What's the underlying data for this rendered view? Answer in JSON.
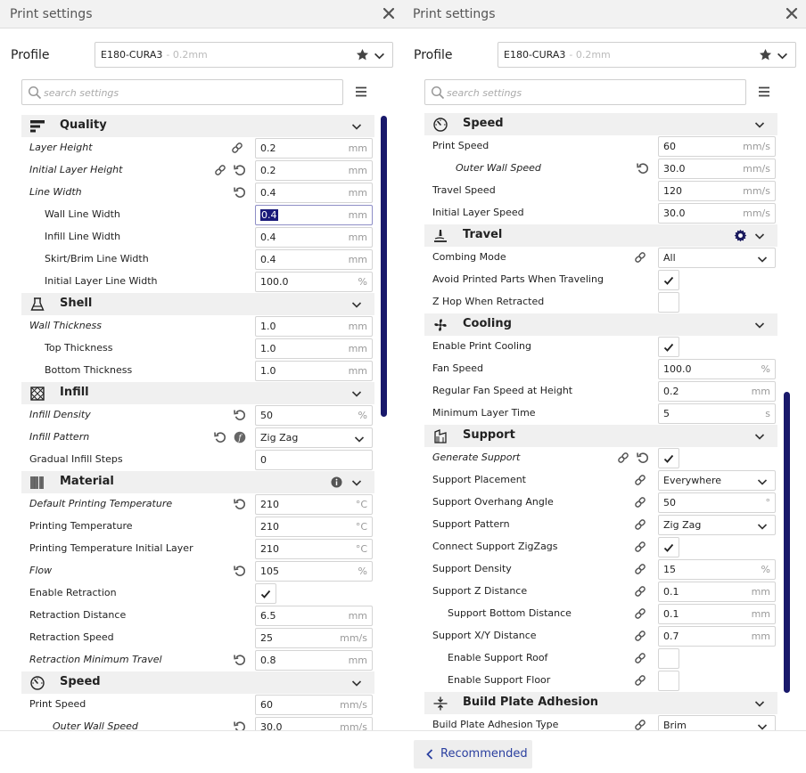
{
  "left_panel": {
    "title": "Print settings",
    "profile_label": "Profile",
    "profile_name": "E180-CURA3",
    "profile_sub": "- 0.2mm",
    "search_placeholder": "search settings",
    "sections": [
      {
        "title": "Quality",
        "icon": "quality-icon",
        "rows": [
          {
            "label": "Layer Height",
            "italic": true,
            "indent": 0,
            "icons": [
              "link"
            ],
            "type": "field",
            "value": "0.2",
            "unit": "mm"
          },
          {
            "label": "Initial Layer Height",
            "italic": true,
            "indent": 0,
            "icons": [
              "link",
              "reset"
            ],
            "type": "field",
            "value": "0.2",
            "unit": "mm"
          },
          {
            "label": "Line Width",
            "italic": true,
            "indent": 0,
            "icons": [
              "reset"
            ],
            "type": "field",
            "value": "0.4",
            "unit": "mm"
          },
          {
            "label": "Wall Line Width",
            "italic": false,
            "indent": 1,
            "icons": [],
            "type": "field",
            "value": "0.4",
            "unit": "mm",
            "focused": true
          },
          {
            "label": "Infill Line Width",
            "italic": false,
            "indent": 1,
            "icons": [],
            "type": "field",
            "value": "0.4",
            "unit": "mm"
          },
          {
            "label": "Skirt/Brim Line Width",
            "italic": false,
            "indent": 1,
            "icons": [],
            "type": "field",
            "value": "0.4",
            "unit": "mm"
          },
          {
            "label": "Initial Layer Line Width",
            "italic": false,
            "indent": 1,
            "icons": [],
            "type": "field",
            "value": "100.0",
            "unit": "%"
          }
        ]
      },
      {
        "title": "Shell",
        "icon": "shell-icon",
        "rows": [
          {
            "label": "Wall Thickness",
            "italic": true,
            "indent": 0,
            "icons": [],
            "type": "field",
            "value": "1.0",
            "unit": "mm"
          },
          {
            "label": "Top Thickness",
            "italic": false,
            "indent": 1,
            "icons": [],
            "type": "field",
            "value": "1.0",
            "unit": "mm"
          },
          {
            "label": "Bottom Thickness",
            "italic": false,
            "indent": 1,
            "icons": [],
            "type": "field",
            "value": "1.0",
            "unit": "mm"
          }
        ]
      },
      {
        "title": "Infill",
        "icon": "infill-icon",
        "rows": [
          {
            "label": "Infill Density",
            "italic": true,
            "indent": 0,
            "icons": [
              "reset"
            ],
            "type": "field",
            "value": "50",
            "unit": "%"
          },
          {
            "label": "Infill Pattern",
            "italic": true,
            "indent": 0,
            "icons": [
              "reset",
              "func"
            ],
            "type": "dropdown",
            "value": "Zig Zag"
          },
          {
            "label": "Gradual Infill Steps",
            "italic": false,
            "indent": 0,
            "icons": [],
            "type": "field",
            "value": "0",
            "unit": ""
          }
        ]
      },
      {
        "title": "Material",
        "icon": "material-icon",
        "extra": "info",
        "rows": [
          {
            "label": "Default Printing Temperature",
            "italic": true,
            "indent": 0,
            "icons": [
              "reset"
            ],
            "type": "field",
            "value": "210",
            "unit": "°C"
          },
          {
            "label": "Printing Temperature",
            "italic": false,
            "indent": 0,
            "icons": [],
            "type": "field",
            "value": "210",
            "unit": "°C"
          },
          {
            "label": "Printing Temperature Initial Layer",
            "italic": false,
            "indent": 0,
            "icons": [],
            "type": "field",
            "value": "210",
            "unit": "°C"
          },
          {
            "label": "Flow",
            "italic": true,
            "indent": 0,
            "icons": [
              "reset"
            ],
            "type": "field",
            "value": "105",
            "unit": "%"
          },
          {
            "label": "Enable Retraction",
            "italic": false,
            "indent": 0,
            "icons": [],
            "type": "checkbox",
            "checked": true
          },
          {
            "label": "Retraction Distance",
            "italic": false,
            "indent": 0,
            "icons": [],
            "type": "field",
            "value": "6.5",
            "unit": "mm"
          },
          {
            "label": "Retraction Speed",
            "italic": false,
            "indent": 0,
            "icons": [],
            "type": "field",
            "value": "25",
            "unit": "mm/s"
          },
          {
            "label": "Retraction Minimum Travel",
            "italic": true,
            "indent": 0,
            "icons": [
              "reset"
            ],
            "type": "field",
            "value": "0.8",
            "unit": "mm"
          }
        ]
      },
      {
        "title": "Speed",
        "icon": "speed-icon",
        "rows": [
          {
            "label": "Print Speed",
            "italic": false,
            "indent": 0,
            "icons": [],
            "type": "field",
            "value": "60",
            "unit": "mm/s"
          },
          {
            "label": "Outer Wall Speed",
            "italic": true,
            "indent": 2,
            "icons": [
              "reset"
            ],
            "type": "field",
            "value": "30.0",
            "unit": "mm/s"
          }
        ]
      }
    ]
  },
  "right_panel": {
    "title": "Print settings",
    "profile_label": "Profile",
    "profile_name": "E180-CURA3",
    "profile_sub": "- 0.2mm",
    "search_placeholder": "search settings",
    "sections": [
      {
        "title": "Speed",
        "icon": "speed-icon",
        "rows": [
          {
            "label": "Print Speed",
            "italic": false,
            "indent": 0,
            "icons": [],
            "type": "field",
            "value": "60",
            "unit": "mm/s"
          },
          {
            "label": "Outer Wall Speed",
            "italic": true,
            "indent": 2,
            "icons": [
              "reset"
            ],
            "type": "field",
            "value": "30.0",
            "unit": "mm/s"
          },
          {
            "label": "Travel Speed",
            "italic": false,
            "indent": 0,
            "icons": [],
            "type": "field",
            "value": "120",
            "unit": "mm/s"
          },
          {
            "label": "Initial Layer Speed",
            "italic": false,
            "indent": 0,
            "icons": [],
            "type": "field",
            "value": "30.0",
            "unit": "mm/s"
          }
        ]
      },
      {
        "title": "Travel",
        "icon": "travel-icon",
        "extra": "gear",
        "rows": [
          {
            "label": "Combing Mode",
            "italic": false,
            "indent": 0,
            "icons": [
              "link"
            ],
            "type": "dropdown",
            "value": "All"
          },
          {
            "label": "Avoid Printed Parts When Traveling",
            "italic": false,
            "indent": 0,
            "icons": [],
            "type": "checkbox",
            "checked": true
          },
          {
            "label": "Z Hop When Retracted",
            "italic": false,
            "indent": 0,
            "icons": [],
            "type": "checkbox",
            "checked": false
          }
        ]
      },
      {
        "title": "Cooling",
        "icon": "cooling-icon",
        "rows": [
          {
            "label": "Enable Print Cooling",
            "italic": false,
            "indent": 0,
            "icons": [],
            "type": "checkbox",
            "checked": true
          },
          {
            "label": "Fan Speed",
            "italic": false,
            "indent": 0,
            "icons": [],
            "type": "field",
            "value": "100.0",
            "unit": "%"
          },
          {
            "label": "Regular Fan Speed at Height",
            "italic": false,
            "indent": 0,
            "icons": [],
            "type": "field",
            "value": "0.2",
            "unit": "mm"
          },
          {
            "label": "Minimum Layer Time",
            "italic": false,
            "indent": 0,
            "icons": [],
            "type": "field",
            "value": "5",
            "unit": "s"
          }
        ]
      },
      {
        "title": "Support",
        "icon": "support-icon",
        "rows": [
          {
            "label": "Generate Support",
            "italic": true,
            "indent": 0,
            "icons": [
              "link",
              "reset"
            ],
            "type": "checkbox",
            "checked": true
          },
          {
            "label": "Support Placement",
            "italic": false,
            "indent": 0,
            "icons": [
              "link"
            ],
            "type": "dropdown",
            "value": "Everywhere"
          },
          {
            "label": "Support Overhang Angle",
            "italic": false,
            "indent": 0,
            "icons": [
              "link"
            ],
            "type": "field",
            "value": "50",
            "unit": "°"
          },
          {
            "label": "Support Pattern",
            "italic": false,
            "indent": 0,
            "icons": [
              "link"
            ],
            "type": "dropdown",
            "value": "Zig Zag"
          },
          {
            "label": "Connect Support ZigZags",
            "italic": false,
            "indent": 0,
            "icons": [
              "link"
            ],
            "type": "checkbox",
            "checked": true
          },
          {
            "label": "Support Density",
            "italic": false,
            "indent": 0,
            "icons": [
              "link"
            ],
            "type": "field",
            "value": "15",
            "unit": "%"
          },
          {
            "label": "Support Z Distance",
            "italic": false,
            "indent": 0,
            "icons": [
              "link"
            ],
            "type": "field",
            "value": "0.1",
            "unit": "mm"
          },
          {
            "label": "Support Bottom Distance",
            "italic": false,
            "indent": 1,
            "icons": [
              "link"
            ],
            "type": "field",
            "value": "0.1",
            "unit": "mm"
          },
          {
            "label": "Support X/Y Distance",
            "italic": false,
            "indent": 0,
            "icons": [
              "link"
            ],
            "type": "field",
            "value": "0.7",
            "unit": "mm"
          },
          {
            "label": "Enable Support Roof",
            "italic": false,
            "indent": 1,
            "icons": [
              "link"
            ],
            "type": "checkbox",
            "checked": false
          },
          {
            "label": "Enable Support Floor",
            "italic": false,
            "indent": 1,
            "icons": [
              "link"
            ],
            "type": "checkbox",
            "checked": false
          }
        ]
      },
      {
        "title": "Build Plate Adhesion",
        "icon": "adhesion-icon",
        "rows": [
          {
            "label": "Build Plate Adhesion Type",
            "italic": false,
            "indent": 0,
            "icons": [
              "link"
            ],
            "type": "dropdown",
            "value": "Brim"
          }
        ]
      }
    ]
  },
  "footer": {
    "recommended_label": "Recommended"
  },
  "colors": {
    "accent": "#19196b",
    "link": "#2a3f9f",
    "section_bg": "#f0f0f0"
  }
}
